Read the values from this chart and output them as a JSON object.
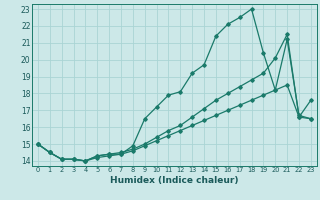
{
  "title": "",
  "xlabel": "Humidex (Indice chaleur)",
  "bg_color": "#cce8e8",
  "line_color": "#1a7a6a",
  "grid_color": "#aad4d4",
  "xlim": [
    -0.5,
    23.5
  ],
  "ylim": [
    13.7,
    23.3
  ],
  "yticks": [
    14,
    15,
    16,
    17,
    18,
    19,
    20,
    21,
    22,
    23
  ],
  "xticks": [
    0,
    1,
    2,
    3,
    4,
    5,
    6,
    7,
    8,
    9,
    10,
    11,
    12,
    13,
    14,
    15,
    16,
    17,
    18,
    19,
    20,
    21,
    22,
    23
  ],
  "line1_x": [
    0,
    1,
    2,
    3,
    4,
    5,
    6,
    7,
    8,
    9,
    10,
    11,
    12,
    13,
    14,
    15,
    16,
    17,
    18,
    19,
    20,
    21,
    22,
    23
  ],
  "line1_y": [
    15.0,
    14.5,
    14.1,
    14.1,
    14.0,
    14.3,
    14.4,
    14.4,
    14.9,
    16.5,
    17.2,
    17.9,
    18.1,
    19.2,
    19.7,
    21.4,
    22.1,
    22.5,
    23.0,
    20.4,
    18.2,
    21.2,
    16.7,
    16.5
  ],
  "line2_x": [
    0,
    1,
    2,
    3,
    4,
    5,
    6,
    7,
    8,
    9,
    10,
    11,
    12,
    13,
    14,
    15,
    16,
    17,
    18,
    19,
    20,
    21,
    22,
    23
  ],
  "line2_y": [
    15.0,
    14.5,
    14.1,
    14.1,
    14.0,
    14.3,
    14.4,
    14.5,
    14.7,
    15.0,
    15.4,
    15.8,
    16.1,
    16.6,
    17.1,
    17.6,
    18.0,
    18.4,
    18.8,
    19.2,
    20.1,
    21.5,
    16.6,
    17.6
  ],
  "line3_x": [
    0,
    1,
    2,
    3,
    4,
    5,
    6,
    7,
    8,
    9,
    10,
    11,
    12,
    13,
    14,
    15,
    16,
    17,
    18,
    19,
    20,
    21,
    22,
    23
  ],
  "line3_y": [
    15.0,
    14.5,
    14.1,
    14.1,
    14.0,
    14.2,
    14.3,
    14.4,
    14.6,
    14.9,
    15.2,
    15.5,
    15.8,
    16.1,
    16.4,
    16.7,
    17.0,
    17.3,
    17.6,
    17.9,
    18.2,
    18.5,
    16.6,
    16.5
  ]
}
